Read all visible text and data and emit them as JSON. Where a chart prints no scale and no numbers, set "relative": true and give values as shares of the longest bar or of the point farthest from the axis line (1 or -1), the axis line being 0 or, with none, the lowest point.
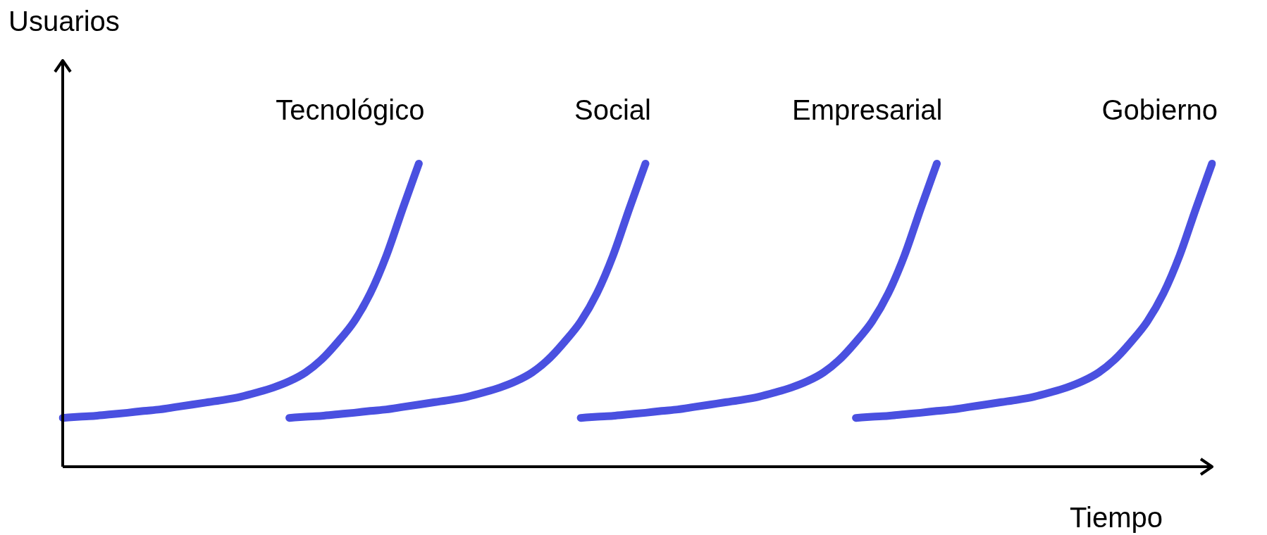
{
  "chart_data": {
    "type": "line",
    "relative": true,
    "xlabel": "Tiempo",
    "ylabel": "Usuarios",
    "legend": false,
    "marker": "none",
    "categories": [
      null,
      null,
      null,
      null,
      null,
      null,
      null,
      null,
      null,
      null,
      null,
      null,
      null,
      null,
      null,
      null,
      null,
      null,
      null,
      null,
      null,
      null,
      null,
      null,
      null,
      null,
      null,
      null,
      null,
      null,
      null,
      null,
      null,
      null,
      null,
      null,
      null,
      null,
      null,
      null,
      null,
      null,
      null,
      null,
      null,
      null,
      null,
      null,
      null,
      null,
      null,
      null,
      null,
      null,
      null,
      null,
      null,
      null,
      null,
      null,
      null,
      null,
      null,
      null,
      null,
      null,
      null,
      null,
      null,
      null,
      null,
      null
    ],
    "series": [
      {
        "name": "Tecnológico",
        "color": "#4a50e0",
        "values": [
          0.161,
          0.165,
          0.168,
          0.173,
          0.178,
          0.184,
          0.189,
          0.197,
          0.205,
          0.213,
          0.221,
          0.231,
          0.245,
          0.261,
          0.282,
          0.311,
          0.354,
          0.412,
          0.479,
          0.572,
          0.697,
          0.851,
          1,
          null,
          null,
          null,
          null,
          null,
          null,
          null,
          null,
          null,
          null,
          null,
          null,
          null,
          null,
          null,
          null,
          null,
          null,
          null,
          null,
          null,
          null,
          null,
          null,
          null,
          null,
          null,
          null,
          null,
          null,
          null,
          null,
          null,
          null,
          null,
          null,
          null,
          null,
          null,
          null,
          null,
          null,
          null,
          null,
          null,
          null,
          null,
          null,
          null
        ]
      },
      {
        "name": "Social",
        "color": "#4a50e0",
        "values": [
          null,
          null,
          null,
          null,
          null,
          null,
          null,
          null,
          null,
          null,
          null,
          null,
          null,
          null,
          0.161,
          0.165,
          0.168,
          0.173,
          0.178,
          0.184,
          0.189,
          0.197,
          0.205,
          0.213,
          0.221,
          0.231,
          0.245,
          0.261,
          0.282,
          0.311,
          0.354,
          0.412,
          0.479,
          0.572,
          0.697,
          0.851,
          1,
          null,
          null,
          null,
          null,
          null,
          null,
          null,
          null,
          null,
          null,
          null,
          null,
          null,
          null,
          null,
          null,
          null,
          null,
          null,
          null,
          null,
          null,
          null,
          null,
          null,
          null,
          null,
          null,
          null,
          null,
          null,
          null,
          null,
          null,
          null
        ]
      },
      {
        "name": "Empresarial",
        "color": "#4a50e0",
        "values": [
          null,
          null,
          null,
          null,
          null,
          null,
          null,
          null,
          null,
          null,
          null,
          null,
          null,
          null,
          null,
          null,
          null,
          null,
          null,
          null,
          null,
          null,
          null,
          null,
          null,
          null,
          null,
          null,
          null,
          null,
          null,
          null,
          0.161,
          0.165,
          0.168,
          0.173,
          0.178,
          0.184,
          0.189,
          0.197,
          0.205,
          0.213,
          0.221,
          0.231,
          0.245,
          0.261,
          0.282,
          0.311,
          0.354,
          0.412,
          0.479,
          0.572,
          0.697,
          0.851,
          1,
          null,
          null,
          null,
          null,
          null,
          null,
          null,
          null,
          null,
          null,
          null,
          null,
          null,
          null,
          null,
          null,
          null
        ]
      },
      {
        "name": "Gobierno",
        "color": "#4a50e0",
        "values": [
          null,
          null,
          null,
          null,
          null,
          null,
          null,
          null,
          null,
          null,
          null,
          null,
          null,
          null,
          null,
          null,
          null,
          null,
          null,
          null,
          null,
          null,
          null,
          null,
          null,
          null,
          null,
          null,
          null,
          null,
          null,
          null,
          null,
          null,
          null,
          null,
          null,
          null,
          null,
          null,
          null,
          null,
          null,
          null,
          null,
          null,
          null,
          null,
          null,
          0.161,
          0.165,
          0.168,
          0.173,
          0.178,
          0.184,
          0.189,
          0.197,
          0.205,
          0.213,
          0.221,
          0.231,
          0.245,
          0.261,
          0.282,
          0.311,
          0.354,
          0.412,
          0.479,
          0.572,
          0.697,
          0.851,
          1
        ]
      }
    ]
  }
}
